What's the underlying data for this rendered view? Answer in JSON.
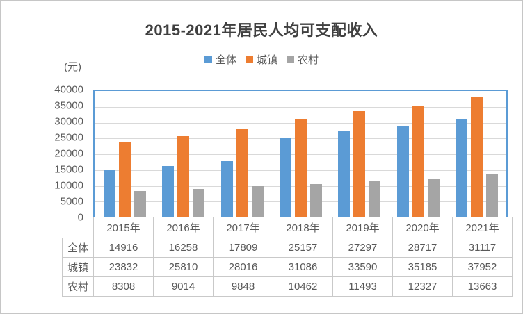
{
  "colors": {
    "plot_border": "#5B9BD5",
    "gridline": "#D9D9D9",
    "table_border": "#C9C9C9",
    "text": "#595959",
    "title": "#404040"
  },
  "chart_data": {
    "type": "bar",
    "title": "2015-2021年居民人均可支配收入",
    "unit_label": "(元)",
    "categories": [
      "2015年",
      "2016年",
      "2017年",
      "2018年",
      "2019年",
      "2020年",
      "2021年"
    ],
    "series": [
      {
        "name": "全体",
        "color": "#5B9BD5",
        "values": [
          14916,
          16258,
          17809,
          25157,
          27297,
          28717,
          31117
        ]
      },
      {
        "name": "城镇",
        "color": "#ED7D31",
        "values": [
          23832,
          25810,
          28016,
          31086,
          33590,
          35185,
          37952
        ]
      },
      {
        "name": "农村",
        "color": "#A5A5A5",
        "values": [
          8308,
          9014,
          9848,
          10462,
          11493,
          12327,
          13663
        ]
      }
    ],
    "xlabel": "",
    "ylabel": "(元)",
    "ylim": [
      0,
      40000
    ],
    "yticks": [
      0,
      5000,
      10000,
      15000,
      20000,
      25000,
      30000,
      35000,
      40000
    ],
    "grid": true,
    "legend_position": "top",
    "data_table_shown": true
  }
}
